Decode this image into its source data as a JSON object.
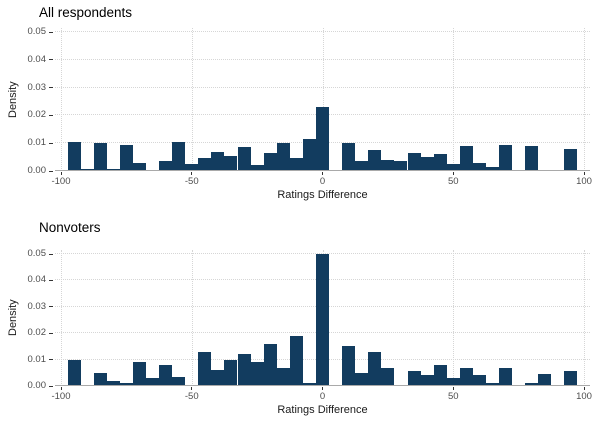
{
  "figure": {
    "background": "#ffffff",
    "bar_color": "#123c5f",
    "gridline_color": "#d6d6d6",
    "axis_line_color": "#a9a9a9",
    "tick_label_color": "#4d4d4d"
  },
  "chart_data": [
    {
      "type": "bar",
      "title": "All respondents",
      "xlabel": "Ratings Difference",
      "ylabel": "Density",
      "bin_width": 5,
      "xlim": [
        -105,
        105
      ],
      "ylim": [
        0,
        0.05
      ],
      "x_ticks": [
        -100,
        -50,
        0,
        50,
        100
      ],
      "y_ticks": [
        0,
        0.01,
        0.02,
        0.03,
        0.04,
        0.05
      ],
      "grid": "dotted",
      "legend": "none",
      "bin_centers": [
        -100,
        -95,
        -90,
        -85,
        -80,
        -75,
        -70,
        -65,
        -60,
        -55,
        -50,
        -45,
        -40,
        -35,
        -30,
        -25,
        -20,
        -15,
        -10,
        -5,
        0,
        5,
        10,
        15,
        20,
        25,
        30,
        35,
        40,
        45,
        50,
        55,
        60,
        65,
        70,
        75,
        80,
        85,
        90,
        95,
        100
      ],
      "densities": [
        0,
        0.0105,
        0.0006,
        0.01,
        0.0006,
        0.0095,
        0.003,
        0.0005,
        0.0035,
        0.0105,
        0.0025,
        0.0045,
        0.007,
        0.0055,
        0.0085,
        0.002,
        0.0065,
        0.01,
        0.0045,
        0.0115,
        0.023,
        0.0005,
        0.01,
        0.0035,
        0.0075,
        0.004,
        0.0035,
        0.0065,
        0.005,
        0.006,
        0.0025,
        0.009,
        0.003,
        0.0015,
        0.0095,
        0.0005,
        0.009,
        0.0003,
        0.0005,
        0.008,
        0
      ]
    },
    {
      "type": "bar",
      "title": "Nonvoters",
      "xlabel": "Ratings Difference",
      "ylabel": "Density",
      "bin_width": 5,
      "xlim": [
        -105,
        105
      ],
      "ylim": [
        0,
        0.05
      ],
      "x_ticks": [
        -100,
        -50,
        0,
        50,
        100
      ],
      "y_ticks": [
        0,
        0.01,
        0.02,
        0.03,
        0.04,
        0.05
      ],
      "grid": "dotted",
      "legend": "none",
      "bin_centers": [
        -100,
        -95,
        -90,
        -85,
        -80,
        -75,
        -70,
        -65,
        -60,
        -55,
        -50,
        -45,
        -40,
        -35,
        -30,
        -25,
        -20,
        -15,
        -10,
        -5,
        0,
        5,
        10,
        15,
        20,
        25,
        30,
        35,
        40,
        45,
        50,
        55,
        60,
        65,
        70,
        75,
        80,
        85,
        90,
        95,
        100
      ],
      "densities": [
        0,
        0.01,
        0.0005,
        0.005,
        0.002,
        0.001,
        0.009,
        0.003,
        0.008,
        0.0035,
        0.0005,
        0.013,
        0.006,
        0.01,
        0.012,
        0.009,
        0.016,
        0.007,
        0.019,
        0.001,
        0.05,
        0.0005,
        0.015,
        0.005,
        0.013,
        0.007,
        0.0005,
        0.0055,
        0.004,
        0.008,
        0.003,
        0.007,
        0.004,
        0.0012,
        0.007,
        0.0005,
        0.0012,
        0.0045,
        0.0005,
        0.0055,
        0
      ]
    }
  ],
  "layout_labels": {
    "y_tick_format": [
      "0.00",
      "0.01",
      "0.02",
      "0.03",
      "0.04",
      "0.05"
    ]
  }
}
